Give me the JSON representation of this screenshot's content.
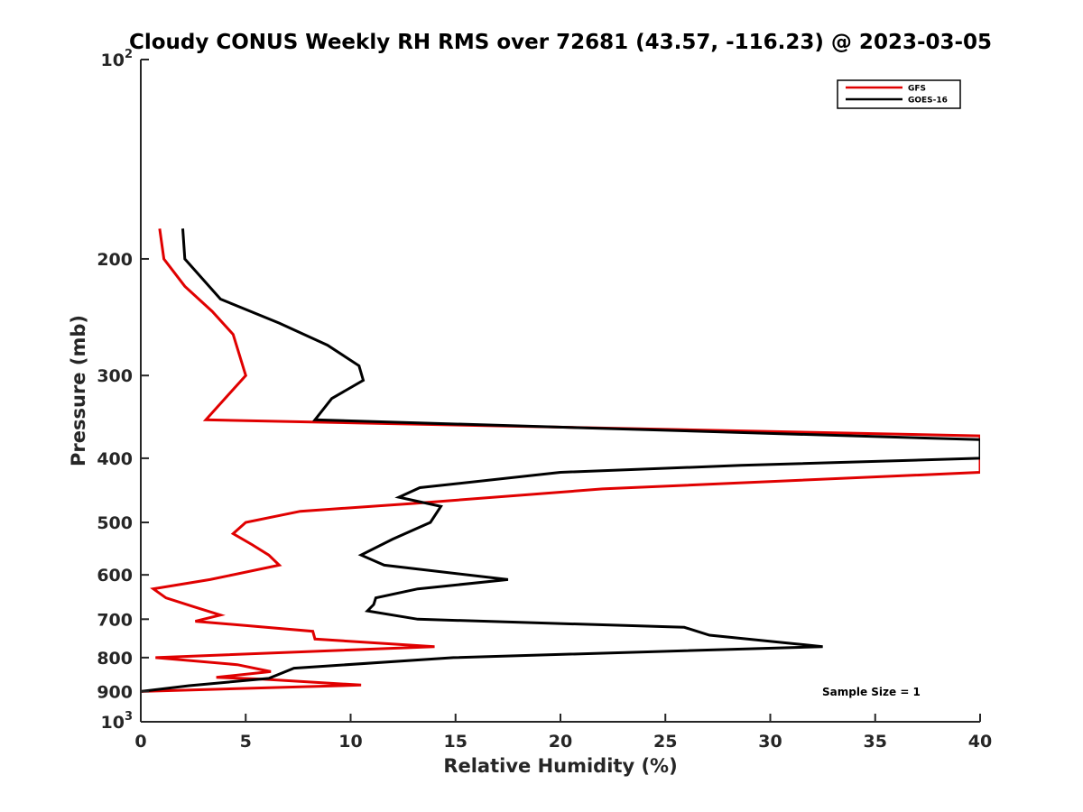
{
  "chart_data": {
    "type": "line",
    "title": "Cloudy CONUS Weekly RH RMS over 72681 (43.57, -116.23) @ 2023-03-05",
    "xlabel": "Relative Humidity (%)",
    "ylabel": "Pressure (mb)",
    "xlim": [
      0,
      40
    ],
    "ylim": [
      100,
      1000
    ],
    "y_scale": "log",
    "y_reversed": true,
    "x_ticks": [
      "0",
      "5",
      "10",
      "15",
      "20",
      "25",
      "30",
      "35",
      "40"
    ],
    "y_ticks": [
      {
        "value": 100,
        "base": "10",
        "exp": "2"
      },
      {
        "value": 200,
        "label": "200"
      },
      {
        "value": 300,
        "label": "300"
      },
      {
        "value": 400,
        "label": "400"
      },
      {
        "value": 500,
        "label": "500"
      },
      {
        "value": 600,
        "label": "600"
      },
      {
        "value": 700,
        "label": "700"
      },
      {
        "value": 800,
        "label": "800"
      },
      {
        "value": 900,
        "label": "900"
      },
      {
        "value": 1000,
        "base": "10",
        "exp": "3"
      }
    ],
    "grid": false,
    "legend_position": "top-right",
    "annotation": "Sample Size = 1",
    "series": [
      {
        "name": "GFS",
        "color": "#e00000",
        "points": [
          [
            0.9,
            180
          ],
          [
            1.1,
            200
          ],
          [
            2.1,
            220
          ],
          [
            3.4,
            240
          ],
          [
            4.4,
            260
          ],
          [
            5.0,
            300
          ],
          [
            3.1,
            350
          ],
          [
            40,
            370
          ],
          [
            40,
            420
          ],
          [
            22,
            445
          ],
          [
            13,
            468
          ],
          [
            7.6,
            481
          ],
          [
            5.0,
            500
          ],
          [
            4.4,
            520
          ],
          [
            5.3,
            540
          ],
          [
            6.1,
            560
          ],
          [
            6.6,
            580
          ],
          [
            3.3,
            610
          ],
          [
            0.6,
            630
          ],
          [
            1.2,
            650
          ],
          [
            2.5,
            670
          ],
          [
            3.8,
            690
          ],
          [
            2.6,
            705
          ],
          [
            8.2,
            730
          ],
          [
            8.3,
            750
          ],
          [
            14.0,
            770
          ],
          [
            0.7,
            800
          ],
          [
            4.6,
            820
          ],
          [
            6.2,
            840
          ],
          [
            3.6,
            857
          ],
          [
            5.8,
            862
          ],
          [
            10.5,
            880
          ],
          [
            0,
            900
          ]
        ]
      },
      {
        "name": "GOES-16",
        "color": "#000000",
        "points": [
          [
            2.0,
            180
          ],
          [
            2.1,
            200
          ],
          [
            3.8,
            230
          ],
          [
            6.6,
            250
          ],
          [
            8.9,
            270
          ],
          [
            10.4,
            290
          ],
          [
            10.6,
            305
          ],
          [
            9.1,
            325
          ],
          [
            8.3,
            350
          ],
          [
            40,
            375
          ],
          [
            40,
            400
          ],
          [
            28.6,
            410
          ],
          [
            20,
            420
          ],
          [
            13.3,
            443
          ],
          [
            12.3,
            458
          ],
          [
            14.3,
            473
          ],
          [
            13.8,
            500
          ],
          [
            12.0,
            530
          ],
          [
            10.5,
            560
          ],
          [
            11.6,
            580
          ],
          [
            17.5,
            610
          ],
          [
            13.2,
            630
          ],
          [
            11.2,
            650
          ],
          [
            11.1,
            665
          ],
          [
            10.8,
            680
          ],
          [
            13.2,
            700
          ],
          [
            25.9,
            720
          ],
          [
            27.1,
            740
          ],
          [
            32.5,
            770
          ],
          [
            14.9,
            800
          ],
          [
            7.3,
            830
          ],
          [
            6.1,
            860
          ],
          [
            2.3,
            882
          ],
          [
            0,
            900
          ]
        ]
      }
    ]
  }
}
